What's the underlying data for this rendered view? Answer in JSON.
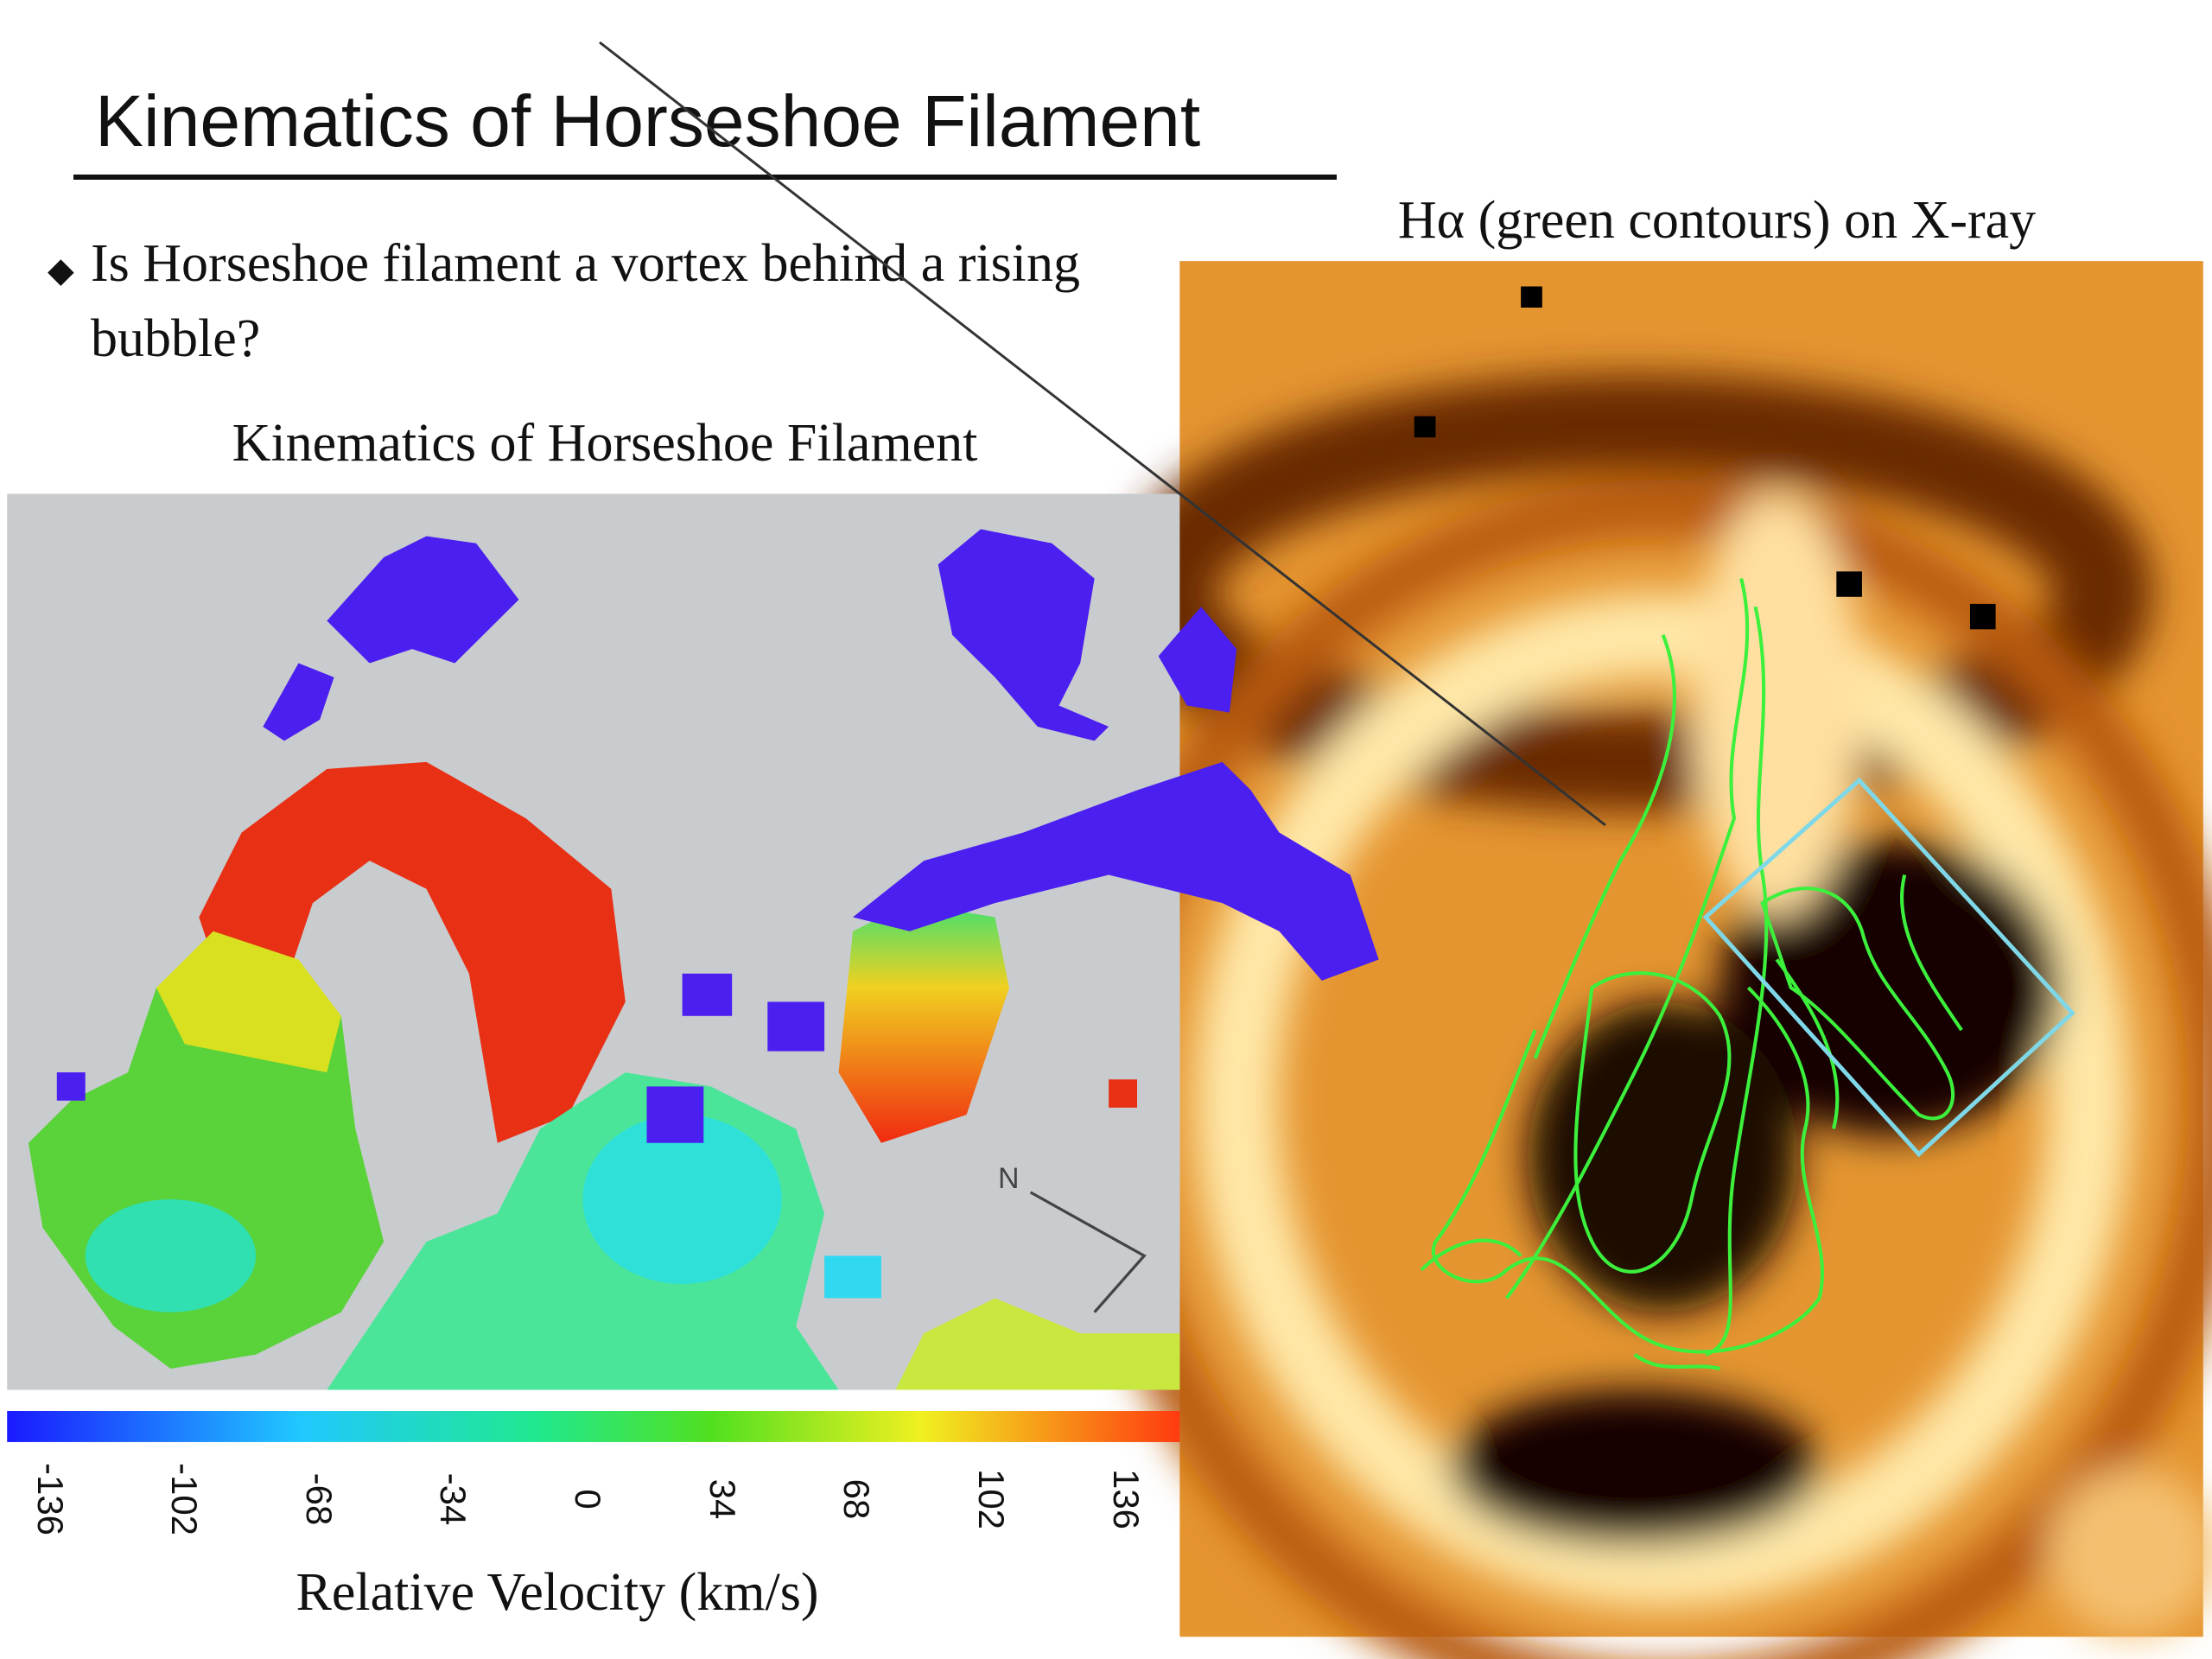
{
  "slide": {
    "title": "Kinematics of Horseshoe Filament",
    "bullets": [
      "Is Horseshoe filament a vortex behind a rising bubble?"
    ],
    "left_panel": {
      "caption": "Kinematics of Horseshoe Filament",
      "compass": "N",
      "colorbar": {
        "ticks": [
          -136,
          -102,
          -68,
          -34,
          0,
          34,
          68,
          102,
          136
        ],
        "label": "Relative Velocity (km/s)"
      }
    },
    "right_panel": {
      "caption": "Hα (green contours) on X-ray"
    }
  }
}
